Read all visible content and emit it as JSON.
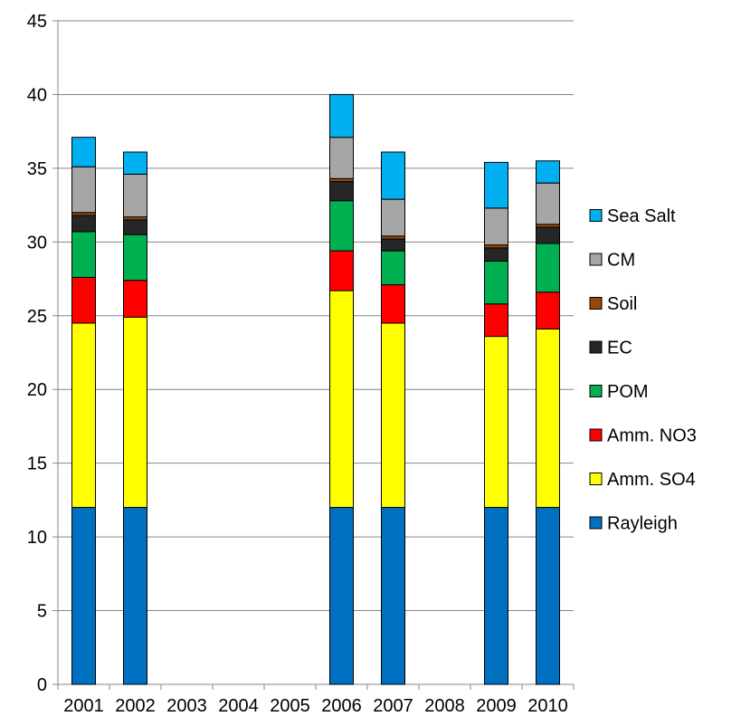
{
  "chart_data": {
    "type": "bar",
    "stacked": true,
    "title": "",
    "xlabel": "",
    "ylabel": "",
    "ylim": [
      0,
      45
    ],
    "yticks": [
      0,
      5,
      10,
      15,
      20,
      25,
      30,
      35,
      40,
      45
    ],
    "grid": "horizontal",
    "legend_position": "right",
    "categories": [
      "2001",
      "2002",
      "2003",
      "2004",
      "2005",
      "2006",
      "2007",
      "2008",
      "2009",
      "2010"
    ],
    "series": [
      {
        "name": "Rayleigh",
        "color": "#0070C0",
        "values": [
          12.0,
          12.0,
          null,
          null,
          null,
          12.0,
          12.0,
          null,
          12.0,
          12.0
        ]
      },
      {
        "name": "Amm. SO4",
        "color": "#FFFF00",
        "values": [
          12.5,
          12.9,
          null,
          null,
          null,
          14.7,
          12.5,
          null,
          11.6,
          12.1
        ]
      },
      {
        "name": "Amm. NO3",
        "color": "#FF0000",
        "values": [
          3.1,
          2.5,
          null,
          null,
          null,
          2.7,
          2.6,
          null,
          2.2,
          2.5
        ]
      },
      {
        "name": "POM",
        "color": "#00B050",
        "values": [
          3.1,
          3.1,
          null,
          null,
          null,
          3.4,
          2.3,
          null,
          2.9,
          3.3
        ]
      },
      {
        "name": "EC",
        "color": "#262626",
        "values": [
          1.1,
          1.0,
          null,
          null,
          null,
          1.3,
          0.8,
          null,
          0.9,
          1.1
        ]
      },
      {
        "name": "Soil",
        "color": "#984807",
        "values": [
          0.2,
          0.2,
          null,
          null,
          null,
          0.2,
          0.2,
          null,
          0.2,
          0.2
        ]
      },
      {
        "name": "CM",
        "color": "#A6A6A6",
        "values": [
          3.1,
          2.9,
          null,
          null,
          null,
          2.8,
          2.5,
          null,
          2.5,
          2.8
        ]
      },
      {
        "name": "Sea Salt",
        "color": "#00B0F0",
        "values": [
          2.0,
          1.5,
          null,
          null,
          null,
          2.9,
          3.2,
          null,
          3.1,
          1.5
        ]
      }
    ]
  }
}
